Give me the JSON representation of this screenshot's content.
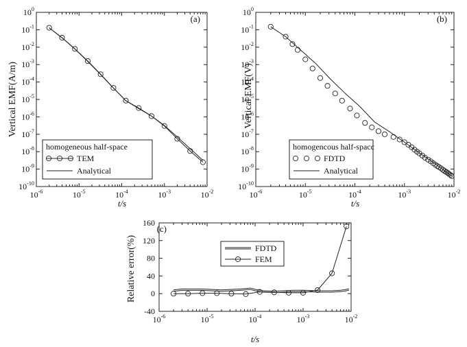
{
  "chart_data": [
    {
      "panel": "(a)",
      "type": "line",
      "xlabel": "t/s",
      "ylabel": "Vertical EMF(A/m)",
      "x_scale": "log",
      "y_scale": "log",
      "xlim": [
        1e-06,
        0.01
      ],
      "ylim": [
        1e-10,
        1
      ],
      "x_ticks": [
        {
          "base": "10",
          "exp": "-6"
        },
        {
          "base": "10",
          "exp": "-5"
        },
        {
          "base": "10",
          "exp": "-4"
        },
        {
          "base": "10",
          "exp": "-3"
        },
        {
          "base": "10",
          "exp": "-2"
        }
      ],
      "y_ticks": [
        {
          "base": "10",
          "exp": "0"
        },
        {
          "base": "10",
          "exp": "-1"
        },
        {
          "base": "10",
          "exp": "-2"
        },
        {
          "base": "10",
          "exp": "-3"
        },
        {
          "base": "10",
          "exp": "-4"
        },
        {
          "base": "10",
          "exp": "-5"
        },
        {
          "base": "10",
          "exp": "-6"
        },
        {
          "base": "10",
          "exp": "-7"
        },
        {
          "base": "10",
          "exp": "-8"
        },
        {
          "base": "10",
          "exp": "-9"
        },
        {
          "base": "10",
          "exp": "-10"
        }
      ],
      "legend": {
        "position": "bottom-left",
        "title": "homogeneous half-space",
        "entries": [
          "TEM",
          "Analytical"
        ]
      },
      "series": [
        {
          "name": "TEM",
          "style": "line-circle",
          "x": [
            2e-06,
            4e-06,
            8e-06,
            1.6e-05,
            3.2e-05,
            6.4e-05,
            0.000125,
            0.00025,
            0.0005,
            0.001,
            0.002,
            0.004,
            0.008
          ],
          "y": [
            0.13,
            0.035,
            0.008,
            0.0016,
            0.00028,
            4.6e-05,
            8.5e-06,
            3.2e-06,
            1.1e-06,
            3e-07,
            5.5e-08,
            1.1e-08,
            2.5e-09
          ]
        },
        {
          "name": "Analytical",
          "style": "line",
          "x": [
            2e-06,
            4e-06,
            8e-06,
            1.6e-05,
            3.2e-05,
            6.4e-05,
            0.000125,
            0.00025,
            0.0005,
            0.001,
            0.002,
            0.004,
            0.008
          ],
          "y": [
            0.13,
            0.034,
            0.0078,
            0.0015,
            0.00027,
            4.5e-05,
            8.5e-06,
            3e-06,
            1.1e-06,
            3.2e-07,
            7e-08,
            1.5e-08,
            3.2e-09
          ]
        }
      ]
    },
    {
      "panel": "(b)",
      "type": "line",
      "xlabel": "t/s",
      "ylabel": "Vertical EMF(V)",
      "x_scale": "log",
      "y_scale": "log",
      "xlim": [
        1e-06,
        0.01
      ],
      "ylim": [
        1e-10,
        1
      ],
      "x_ticks": [
        {
          "base": "10",
          "exp": "-6"
        },
        {
          "base": "10",
          "exp": "-5"
        },
        {
          "base": "10",
          "exp": "-4"
        },
        {
          "base": "10",
          "exp": "-3"
        },
        {
          "base": "10",
          "exp": "-2"
        }
      ],
      "y_ticks": [
        {
          "base": "10",
          "exp": "0"
        },
        {
          "base": "10",
          "exp": "-1"
        },
        {
          "base": "10",
          "exp": "-2"
        },
        {
          "base": "10",
          "exp": "-3"
        },
        {
          "base": "10",
          "exp": "-4"
        },
        {
          "base": "10",
          "exp": "-5"
        },
        {
          "base": "10",
          "exp": "-6"
        },
        {
          "base": "10",
          "exp": "-7"
        },
        {
          "base": "10",
          "exp": "-8"
        },
        {
          "base": "10",
          "exp": "-9"
        },
        {
          "base": "10",
          "exp": "-10"
        }
      ],
      "legend": {
        "position": "bottom-left",
        "title": "homogencous half-spacc",
        "entries": [
          "FDTD",
          "Analytical"
        ]
      },
      "series": [
        {
          "name": "FDTD",
          "style": "circle",
          "x": [
            2e-06,
            4e-06,
            5.5e-06,
            7e-06,
            1e-05,
            1.4e-05,
            2e-05,
            2.8e-05,
            4e-05,
            5.5e-05,
            8e-05,
            0.00011,
            0.00016,
            0.00022,
            0.0003,
            0.0004,
            0.0006,
            0.0008,
            0.001,
            0.0012,
            0.0014,
            0.0016,
            0.0018,
            0.002,
            0.0023,
            0.0026,
            0.003,
            0.0034,
            0.0038,
            0.0042,
            0.0046,
            0.005,
            0.0055,
            0.006,
            0.0065,
            0.007,
            0.0075,
            0.008,
            0.0085,
            0.009
          ],
          "y": [
            0.15,
            0.04,
            0.015,
            0.007,
            0.002,
            0.0006,
            0.00017,
            6e-05,
            2.2e-05,
            8.5e-06,
            3e-06,
            1.2e-06,
            4.5e-07,
            2.5e-07,
            1.5e-07,
            1e-07,
            7e-08,
            5e-08,
            3.5e-08,
            2.5e-08,
            1.8e-08,
            1.3e-08,
            1e-08,
            8e-09,
            6e-09,
            4.5e-09,
            3.5e-09,
            2.8e-09,
            2.2e-09,
            1.8e-09,
            1.5e-09,
            1.3e-09,
            1.1e-09,
            9e-10,
            7.8e-10,
            6.8e-10,
            6e-10,
            5.2e-10,
            4.6e-10,
            4e-10
          ]
        },
        {
          "name": "Analytical",
          "style": "line",
          "x": [
            2e-06,
            4e-06,
            8e-06,
            1.6e-05,
            3.2e-05,
            6.4e-05,
            0.000125,
            0.00025,
            0.0005,
            0.001,
            0.002,
            0.004,
            0.009
          ],
          "y": [
            0.15,
            0.04,
            0.007,
            0.0012,
            0.00015,
            2.2e-05,
            4e-06,
            5e-07,
            1.4e-07,
            3.5e-08,
            8.5e-09,
            2.2e-09,
            4e-10
          ]
        }
      ]
    },
    {
      "panel": "(c)",
      "type": "line",
      "xlabel": "t/s",
      "ylabel": "Relative error(%)",
      "x_scale": "log",
      "xlim": [
        1e-06,
        0.01
      ],
      "ylim": [
        -40,
        160
      ],
      "x_ticks": [
        {
          "base": "10",
          "exp": "-6"
        },
        {
          "base": "10",
          "exp": "-5"
        },
        {
          "base": "10",
          "exp": "-4"
        },
        {
          "base": "10",
          "exp": "-3"
        },
        {
          "base": "10",
          "exp": "-2"
        }
      ],
      "y_ticks": [
        "160",
        "120",
        "80",
        "40",
        "0",
        "-40"
      ],
      "legend": {
        "position": "top-center",
        "entries": [
          "FDTD",
          "FEM"
        ]
      },
      "series": [
        {
          "name": "FDTD",
          "style": "double-line",
          "x": [
            2e-06,
            3e-06,
            5e-06,
            8e-06,
            1.2e-05,
            2e-05,
            3.2e-05,
            5e-05,
            8e-05,
            0.0001,
            0.00015,
            0.00025,
            0.0004,
            0.0006,
            0.001,
            0.002,
            0.004,
            0.006,
            0.008,
            0.009
          ],
          "y": [
            7,
            9,
            9,
            9,
            8,
            7,
            8,
            9,
            11,
            8,
            5,
            4,
            5,
            6,
            6,
            5,
            5,
            6,
            8,
            10
          ]
        },
        {
          "name": "FEM",
          "style": "line-circle",
          "x": [
            2e-06,
            4e-06,
            8e-06,
            1.6e-05,
            3.2e-05,
            6.4e-05,
            0.000125,
            0.00025,
            0.0005,
            0.001,
            0.002,
            0.004,
            0.008
          ],
          "y": [
            0,
            0,
            1,
            1,
            0,
            -1,
            4,
            3,
            2,
            2,
            8,
            46,
            152
          ]
        }
      ]
    }
  ]
}
